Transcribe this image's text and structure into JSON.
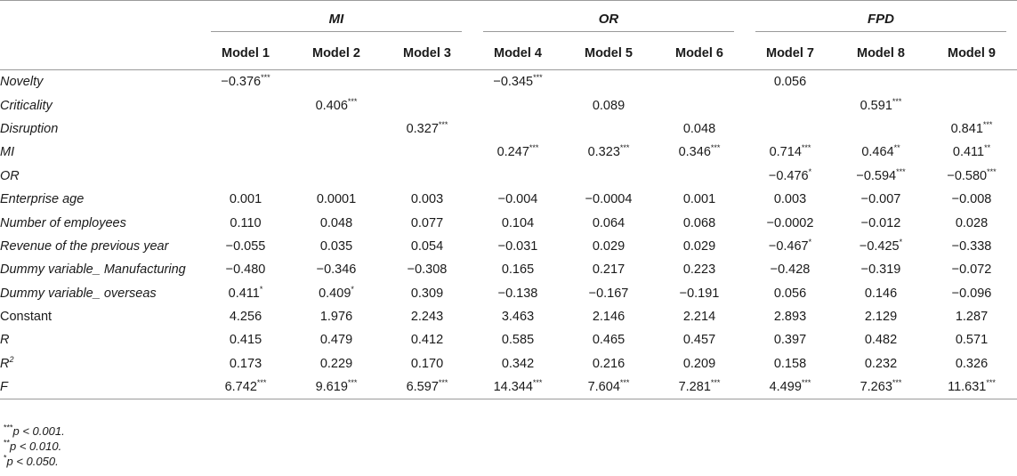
{
  "groups": [
    "MI",
    "OR",
    "FPD"
  ],
  "models": [
    "Model 1",
    "Model 2",
    "Model 3",
    "Model 4",
    "Model 5",
    "Model 6",
    "Model 7",
    "Model 8",
    "Model 9"
  ],
  "rows": [
    {
      "label": "Novelty",
      "italic": true,
      "values": [
        [
          "−0.376",
          "***"
        ],
        [
          "",
          ""
        ],
        [
          "",
          ""
        ],
        [
          "−0.345",
          "***"
        ],
        [
          "",
          ""
        ],
        [
          "",
          ""
        ],
        [
          "0.056",
          ""
        ],
        [
          "",
          ""
        ],
        [
          "",
          ""
        ]
      ]
    },
    {
      "label": "Criticality",
      "italic": true,
      "values": [
        [
          "",
          ""
        ],
        [
          "0.406",
          "***"
        ],
        [
          "",
          ""
        ],
        [
          "",
          ""
        ],
        [
          "0.089",
          ""
        ],
        [
          "",
          ""
        ],
        [
          "",
          ""
        ],
        [
          "0.591",
          "***"
        ],
        [
          "",
          ""
        ]
      ]
    },
    {
      "label": "Disruption",
      "italic": true,
      "values": [
        [
          "",
          ""
        ],
        [
          "",
          ""
        ],
        [
          "0.327",
          "***"
        ],
        [
          "",
          ""
        ],
        [
          "",
          ""
        ],
        [
          "0.048",
          ""
        ],
        [
          "",
          ""
        ],
        [
          "",
          ""
        ],
        [
          "0.841",
          "***"
        ]
      ]
    },
    {
      "label": "MI",
      "italic": true,
      "values": [
        [
          "",
          ""
        ],
        [
          "",
          ""
        ],
        [
          "",
          ""
        ],
        [
          "0.247",
          "***"
        ],
        [
          "0.323",
          "***"
        ],
        [
          "0.346",
          "***"
        ],
        [
          "0.714",
          "***"
        ],
        [
          "0.464",
          "**"
        ],
        [
          "0.411",
          "**"
        ]
      ]
    },
    {
      "label": "OR",
      "italic": true,
      "values": [
        [
          "",
          ""
        ],
        [
          "",
          ""
        ],
        [
          "",
          ""
        ],
        [
          "",
          ""
        ],
        [
          "",
          ""
        ],
        [
          "",
          ""
        ],
        [
          "−0.476",
          "*"
        ],
        [
          "−0.594",
          "***"
        ],
        [
          "−0.580",
          "***"
        ]
      ]
    },
    {
      "label": "Enterprise age",
      "italic": true,
      "values": [
        [
          "0.001",
          ""
        ],
        [
          "0.0001",
          ""
        ],
        [
          "0.003",
          ""
        ],
        [
          "−0.004",
          ""
        ],
        [
          "−0.0004",
          ""
        ],
        [
          "0.001",
          ""
        ],
        [
          "0.003",
          ""
        ],
        [
          "−0.007",
          ""
        ],
        [
          "−0.008",
          ""
        ]
      ]
    },
    {
      "label": "Number of employees",
      "italic": true,
      "values": [
        [
          "0.110",
          ""
        ],
        [
          "0.048",
          ""
        ],
        [
          "0.077",
          ""
        ],
        [
          "0.104",
          ""
        ],
        [
          "0.064",
          ""
        ],
        [
          "0.068",
          ""
        ],
        [
          "−0.0002",
          ""
        ],
        [
          "−0.012",
          ""
        ],
        [
          "0.028",
          ""
        ]
      ]
    },
    {
      "label": "Revenue of the previous year",
      "italic": true,
      "values": [
        [
          "−0.055",
          ""
        ],
        [
          "0.035",
          ""
        ],
        [
          "0.054",
          ""
        ],
        [
          "−0.031",
          ""
        ],
        [
          "0.029",
          ""
        ],
        [
          "0.029",
          ""
        ],
        [
          "−0.467",
          "*"
        ],
        [
          "−0.425",
          "*"
        ],
        [
          "−0.338",
          ""
        ]
      ]
    },
    {
      "label": "Dummy variable_ Manufacturing",
      "italic": true,
      "values": [
        [
          "−0.480",
          ""
        ],
        [
          "−0.346",
          ""
        ],
        [
          "−0.308",
          ""
        ],
        [
          "0.165",
          ""
        ],
        [
          "0.217",
          ""
        ],
        [
          "0.223",
          ""
        ],
        [
          "−0.428",
          ""
        ],
        [
          "−0.319",
          ""
        ],
        [
          "−0.072",
          ""
        ]
      ]
    },
    {
      "label": "Dummy variable_ overseas",
      "italic": true,
      "values": [
        [
          "0.411",
          "*"
        ],
        [
          "0.409",
          "*"
        ],
        [
          "0.309",
          ""
        ],
        [
          "−0.138",
          ""
        ],
        [
          "−0.167",
          ""
        ],
        [
          "−0.191",
          ""
        ],
        [
          "0.056",
          ""
        ],
        [
          "0.146",
          ""
        ],
        [
          "−0.096",
          ""
        ]
      ]
    },
    {
      "label": "Constant",
      "italic": false,
      "values": [
        [
          "4.256",
          ""
        ],
        [
          "1.976",
          ""
        ],
        [
          "2.243",
          ""
        ],
        [
          "3.463",
          ""
        ],
        [
          "2.146",
          ""
        ],
        [
          "2.214",
          ""
        ],
        [
          "2.893",
          ""
        ],
        [
          "2.129",
          ""
        ],
        [
          "1.287",
          ""
        ]
      ]
    },
    {
      "label": "R",
      "italic": true,
      "sup": "",
      "values": [
        [
          "0.415",
          ""
        ],
        [
          "0.479",
          ""
        ],
        [
          "0.412",
          ""
        ],
        [
          "0.585",
          ""
        ],
        [
          "0.465",
          ""
        ],
        [
          "0.457",
          ""
        ],
        [
          "0.397",
          ""
        ],
        [
          "0.482",
          ""
        ],
        [
          "0.571",
          ""
        ]
      ]
    },
    {
      "label": "R",
      "italic": true,
      "sup": "2",
      "values": [
        [
          "0.173",
          ""
        ],
        [
          "0.229",
          ""
        ],
        [
          "0.170",
          ""
        ],
        [
          "0.342",
          ""
        ],
        [
          "0.216",
          ""
        ],
        [
          "0.209",
          ""
        ],
        [
          "0.158",
          ""
        ],
        [
          "0.232",
          ""
        ],
        [
          "0.326",
          ""
        ]
      ]
    },
    {
      "label": "F",
      "italic": true,
      "sup": "",
      "values": [
        [
          "6.742",
          "***"
        ],
        [
          "9.619",
          "***"
        ],
        [
          "6.597",
          "***"
        ],
        [
          "14.344",
          "***"
        ],
        [
          "7.604",
          "***"
        ],
        [
          "7.281",
          "***"
        ],
        [
          "4.499",
          "***"
        ],
        [
          "7.263",
          "***"
        ],
        [
          "11.631",
          "***"
        ]
      ]
    }
  ],
  "notes": [
    {
      "stars": "***",
      "text": "p < 0.001."
    },
    {
      "stars": "**",
      "text": "p < 0.010."
    },
    {
      "stars": "*",
      "text": "p < 0.050."
    }
  ]
}
